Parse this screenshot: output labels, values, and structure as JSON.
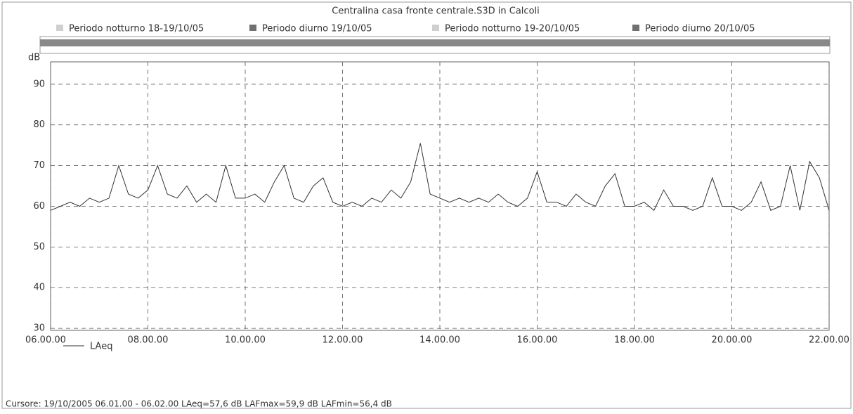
{
  "chart_data": {
    "type": "line",
    "title": "Centralina casa fronte centrale.S3D in Calcoli",
    "periods": [
      {
        "name": "Periodo notturno 18-19/10/05",
        "color": "#cfcfcf"
      },
      {
        "name": "Periodo diurno 19/10/05",
        "color": "#707070"
      },
      {
        "name": "Periodo notturno 19-20/10/05",
        "color": "#cfcfcf"
      },
      {
        "name": "Periodo diurno 20/10/05",
        "color": "#707070"
      }
    ],
    "ylabel": "dB",
    "x": [
      6,
      6.2,
      6.4,
      6.6,
      6.8,
      7,
      7.2,
      7.4,
      7.6,
      7.8,
      8,
      8.2,
      8.4,
      8.6,
      8.8,
      9,
      9.2,
      9.4,
      9.6,
      9.8,
      10,
      10.2,
      10.4,
      10.6,
      10.8,
      11,
      11.2,
      11.4,
      11.6,
      11.8,
      12,
      12.2,
      12.4,
      12.6,
      12.8,
      13,
      13.2,
      13.4,
      13.6,
      13.8,
      14,
      14.2,
      14.4,
      14.6,
      14.8,
      15,
      15.2,
      15.4,
      15.6,
      15.8,
      16,
      16.2,
      16.4,
      16.6,
      16.8,
      17,
      17.2,
      17.4,
      17.6,
      17.8,
      18,
      18.2,
      18.4,
      18.6,
      18.8,
      19,
      19.2,
      19.4,
      19.6,
      19.8,
      20,
      20.2,
      20.4,
      20.6,
      20.8,
      21,
      21.2,
      21.4,
      21.6,
      21.8,
      22
    ],
    "series": [
      {
        "name": "LAeq",
        "color": "#333333",
        "values": [
          59,
          60,
          61,
          60,
          62,
          61,
          62,
          70,
          63,
          62,
          64,
          70,
          63,
          62,
          65,
          61,
          63,
          61,
          70,
          62,
          62,
          63,
          61,
          66,
          70,
          62,
          61,
          65,
          67,
          61,
          60,
          61,
          60,
          62,
          61,
          64,
          62,
          66,
          75.5,
          63,
          62,
          61,
          62,
          61,
          62,
          61,
          63,
          61,
          60,
          62,
          68.5,
          61,
          61,
          60,
          63,
          61,
          60,
          65,
          68,
          60,
          60,
          61,
          59,
          64,
          60,
          60,
          59,
          60,
          67,
          60,
          60,
          59,
          61,
          66,
          59,
          60,
          70,
          59,
          71,
          67,
          59
        ]
      }
    ],
    "xlim": [
      6,
      22
    ],
    "xticks": [
      {
        "value": 6,
        "label": "06.00.00"
      },
      {
        "value": 8,
        "label": "08.00.00"
      },
      {
        "value": 10,
        "label": "10.00.00"
      },
      {
        "value": 12,
        "label": "12.00.00"
      },
      {
        "value": 14,
        "label": "14.00.00"
      },
      {
        "value": 16,
        "label": "16.00.00"
      },
      {
        "value": 18,
        "label": "18.00.00"
      },
      {
        "value": 20,
        "label": "20.00.00"
      },
      {
        "value": 22,
        "label": "22.00.00"
      }
    ],
    "ylim": [
      29.5,
      95.5
    ],
    "yticks": [
      30,
      40,
      50,
      60,
      70,
      80,
      90
    ],
    "grid": true,
    "footer": "Cursore: 19/10/2005 06.01.00 - 06.02.00  LAeq=57,6 dB  LAFmax=59,9 dB  LAFmin=56,4 dB"
  }
}
